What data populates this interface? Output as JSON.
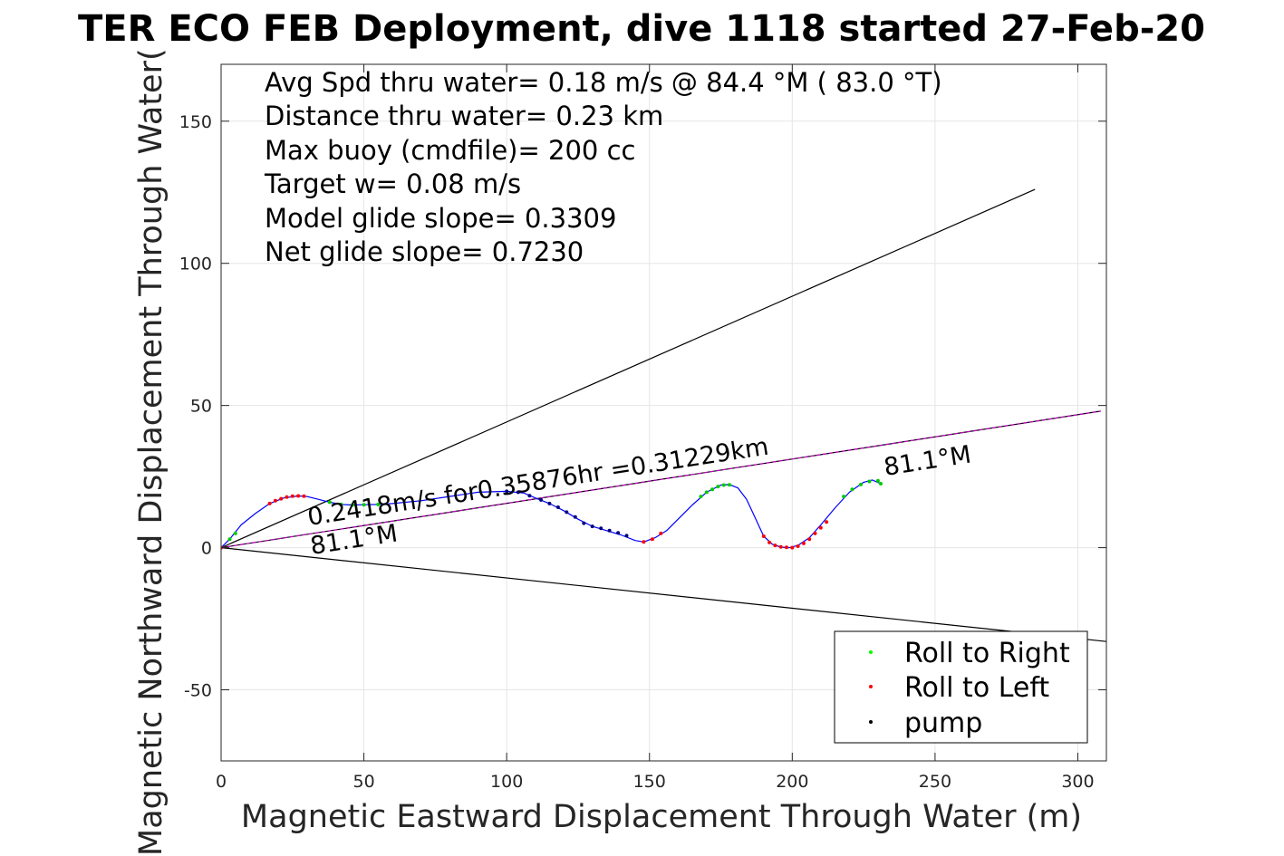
{
  "chart_data": {
    "type": "line",
    "title": "TER ECO FEB Deployment, dive 1118 started 27-Feb-20",
    "xlabel": "Magnetic Eastward Displacement Through Water (m)",
    "ylabel": "Magnetic Northward Displacement Through Water(",
    "xlim": [
      0,
      310
    ],
    "ylim": [
      -75,
      170
    ],
    "xticks": [
      0,
      50,
      100,
      150,
      200,
      250,
      300
    ],
    "yticks": [
      -50,
      0,
      50,
      100,
      150
    ],
    "xtick_labels": [
      "0",
      "50",
      "100",
      "150",
      "200",
      "250",
      "300"
    ],
    "ytick_labels": [
      "-50",
      "0",
      "50",
      "100",
      "150"
    ],
    "grid": true,
    "stats": [
      "Avg Spd thru water=  0.18 m/s @  84.4 °M ( 83.0 °T)",
      "Distance thru water=  0.23 km",
      "Max buoy (cmdfile)= 200 cc",
      "Target w= 0.08 m/s",
      "Model glide slope= 0.3309",
      "Net glide slope= 0.7230"
    ],
    "annotations": {
      "speed_label": "0.2418m/s for0.35876hr =0.31229km",
      "heading_start": "81.1°M",
      "heading_end": "81.1°M"
    },
    "cone_lines": [
      {
        "x": [
          0,
          285
        ],
        "y": [
          0,
          126
        ]
      },
      {
        "x": [
          0,
          310
        ],
        "y": [
          0,
          -33
        ]
      }
    ],
    "heading_line": {
      "x": [
        0,
        308
      ],
      "y": [
        0,
        48
      ],
      "color": "#cc00cc"
    },
    "track": {
      "color": "#0000ff",
      "x": [
        0,
        3,
        7,
        12,
        17,
        22,
        27,
        30,
        34,
        38,
        42,
        46,
        50,
        55,
        60,
        70,
        80,
        90,
        100,
        106,
        110,
        115,
        120,
        125,
        130,
        135,
        140,
        145,
        148,
        152,
        156,
        160,
        165,
        170,
        175,
        178,
        181,
        184,
        187,
        190,
        193,
        196,
        199,
        202,
        206,
        210,
        215,
        220,
        225,
        228,
        231
      ],
      "y": [
        0,
        3,
        8,
        12,
        15.5,
        17.5,
        18.2,
        18,
        17,
        16,
        15.2,
        15,
        15.1,
        15.2,
        15.5,
        16.5,
        18,
        19.5,
        19.8,
        19.2,
        17.5,
        15.5,
        13,
        10,
        7.5,
        6,
        4.5,
        2.5,
        2,
        3.5,
        6,
        10,
        15,
        19.5,
        22,
        22.2,
        21,
        17,
        10.5,
        4,
        1.2,
        0.2,
        0,
        0.8,
        3.5,
        8,
        14,
        19.5,
        23,
        23.8,
        22.5
      ]
    },
    "markers": {
      "roll_right": {
        "color": "#00cc00",
        "x": [
          3,
          5,
          38,
          42,
          46,
          50,
          55,
          168,
          170,
          172,
          174,
          176,
          178,
          218,
          221,
          224,
          227,
          230,
          231
        ],
        "y": [
          3,
          5,
          16,
          15.2,
          15,
          15.1,
          15.2,
          18,
          19.5,
          20.5,
          21.5,
          22,
          22.1,
          18,
          20.5,
          22.2,
          23.3,
          23.5,
          22.5
        ]
      },
      "roll_left": {
        "color": "#ff0000",
        "x": [
          0,
          17,
          19,
          21,
          23,
          25,
          27,
          29,
          148,
          151,
          154,
          190,
          192,
          194,
          196,
          198,
          200,
          202,
          204,
          206,
          208,
          210,
          212
        ],
        "y": [
          0,
          15.5,
          16.5,
          17.2,
          17.8,
          18.1,
          18.2,
          18.1,
          2,
          3,
          5,
          4,
          1.8,
          0.8,
          0.3,
          0.1,
          0,
          0.5,
          1.5,
          3,
          5,
          7,
          9
        ]
      },
      "pump": {
        "color": "#000080",
        "x": [
          100,
          104,
          108,
          112,
          115,
          118,
          121,
          124,
          127,
          130,
          133,
          136,
          139,
          142
        ],
        "y": [
          19.8,
          19.5,
          18.3,
          16.8,
          15.5,
          14.2,
          12.5,
          10.8,
          8.6,
          7.5,
          6.8,
          6,
          5.2,
          4.2
        ]
      }
    },
    "legend": {
      "position": "bottom-right",
      "entries": [
        {
          "label": "Roll to Right",
          "color": "#00ff00"
        },
        {
          "label": "Roll to Left",
          "color": "#ff0000"
        },
        {
          "label": "pump",
          "color": "#000000"
        }
      ]
    }
  }
}
